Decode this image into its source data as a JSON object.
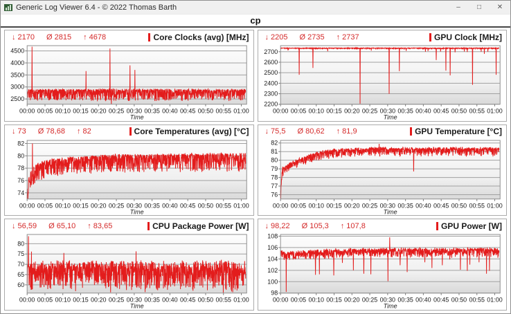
{
  "window": {
    "title": "Generic Log Viewer 6.4 - © 2022 Thomas Barth",
    "controls": {
      "minimize": "–",
      "maximize": "□",
      "close": "✕"
    }
  },
  "header": {
    "tab_label": "cp"
  },
  "colors": {
    "series": "#e31c1c",
    "stats_red": "#d42a2a",
    "grid": "#a0a0a0",
    "plot_border": "#8f8f8f",
    "tick": "#777777",
    "label": "#1a1a1a"
  },
  "chart_data": [
    {
      "type": "line",
      "title": "Core Clocks (avg) [MHz]",
      "stats": {
        "min": 2170,
        "avg": 2815,
        "max": 4678,
        "min_label": "↓ 2170",
        "avg_label": "Ø 2815",
        "max_label": "↑ 4678"
      },
      "xlabel": "Time",
      "x_ticks": [
        "00:00",
        "00:05",
        "00:10",
        "00:15",
        "00:20",
        "00:25",
        "00:30",
        "00:35",
        "00:40",
        "00:45",
        "00:50",
        "00:55",
        "01:00"
      ],
      "x_range": [
        0,
        61.5
      ],
      "ylim": [
        2280,
        4720
      ],
      "y_ticks": [
        2500,
        3000,
        3500,
        4000,
        4500
      ],
      "baseline": [
        [
          0,
          2880
        ],
        [
          61.5,
          2880
        ]
      ],
      "noise_up": 40,
      "noise_down": 480,
      "spikes": [
        [
          1.4,
          4678
        ],
        [
          16.5,
          3660
        ],
        [
          23.2,
          4600
        ],
        [
          23.6,
          2170
        ],
        [
          28.8,
          3900
        ],
        [
          30.2,
          3710
        ]
      ],
      "seed": 11
    },
    {
      "type": "line",
      "title": "GPU Clock [MHz]",
      "stats": {
        "min": 2205,
        "avg": 2735,
        "max": 2737,
        "min_label": "↓ 2205",
        "avg_label": "Ø 2735",
        "max_label": "↑ 2737"
      },
      "xlabel": "Time",
      "x_ticks": [
        "00:00",
        "00:05",
        "00:10",
        "00:15",
        "00:20",
        "00:25",
        "00:30",
        "00:35",
        "00:40",
        "00:45",
        "00:50",
        "00:55",
        "01:00"
      ],
      "x_range": [
        0,
        61.5
      ],
      "ylim": [
        2200,
        2758
      ],
      "y_ticks": [
        2200,
        2300,
        2400,
        2500,
        2600,
        2700
      ],
      "baseline": [
        [
          0,
          2735
        ],
        [
          61.5,
          2735
        ]
      ],
      "noise_up": 2,
      "noise_down": 8,
      "spikes": [
        [
          2.1,
          2712
        ],
        [
          5.2,
          2480
        ],
        [
          9.1,
          2545
        ],
        [
          13.2,
          2705
        ],
        [
          22.3,
          2205
        ],
        [
          25.4,
          2710
        ],
        [
          30.4,
          2300
        ],
        [
          33.3,
          2515
        ],
        [
          35.2,
          2708
        ],
        [
          40.6,
          2700
        ],
        [
          41.3,
          2706
        ],
        [
          43.6,
          2620
        ],
        [
          44.8,
          2702
        ],
        [
          46.3,
          2520
        ],
        [
          47.5,
          2475
        ],
        [
          48.9,
          2695
        ],
        [
          51.5,
          2702
        ],
        [
          52.3,
          2697
        ],
        [
          53.8,
          2385
        ],
        [
          56.2,
          2700
        ],
        [
          57.1,
          2680
        ],
        [
          58.1,
          2701
        ],
        [
          60.4,
          2480
        ]
      ],
      "seed": 22
    },
    {
      "type": "line",
      "title": "Core Temperatures (avg) [°C]",
      "stats": {
        "min": 73,
        "avg": 78.68,
        "max": 82,
        "min_label": "↓ 73",
        "avg_label": "Ø 78,68",
        "max_label": "↑ 82"
      },
      "xlabel": "Time",
      "x_ticks": [
        "00:00",
        "00:05",
        "00:10",
        "00:15",
        "00:20",
        "00:25",
        "00:30",
        "00:35",
        "00:40",
        "00:45",
        "00:50",
        "00:55",
        "01:00"
      ],
      "x_range": [
        0,
        61.5
      ],
      "ylim": [
        73,
        82.5
      ],
      "y_ticks": [
        74,
        76,
        78,
        80,
        82
      ],
      "baseline": [
        [
          0,
          74.2
        ],
        [
          0.4,
          76.2
        ],
        [
          1.2,
          77.6
        ],
        [
          3,
          78.6
        ],
        [
          6,
          79.2
        ],
        [
          12,
          79.6
        ],
        [
          25,
          80.0
        ],
        [
          45,
          80.1
        ],
        [
          61.5,
          80.2
        ]
      ],
      "noise_up": 0.3,
      "noise_down": 2.8,
      "spikes": [
        [
          0.1,
          73
        ],
        [
          1.5,
          82
        ]
      ],
      "seed": 33
    },
    {
      "type": "line",
      "title": "GPU Temperature [°C]",
      "stats": {
        "min": 75.5,
        "avg": 80.62,
        "max": 81.9,
        "min_label": "↓ 75,5",
        "avg_label": "Ø 80,62",
        "max_label": "↑ 81,9"
      },
      "xlabel": "Time",
      "x_ticks": [
        "00:00",
        "00:05",
        "00:10",
        "00:15",
        "00:20",
        "00:25",
        "00:30",
        "00:35",
        "00:40",
        "00:45",
        "00:50",
        "00:55",
        "01:00"
      ],
      "x_range": [
        0,
        61.5
      ],
      "ylim": [
        75.5,
        82.3
      ],
      "y_ticks": [
        76,
        77,
        78,
        79,
        80,
        81,
        82
      ],
      "baseline": [
        [
          0,
          76.3
        ],
        [
          0.5,
          79.0
        ],
        [
          1.5,
          79.2
        ],
        [
          3,
          79.6
        ],
        [
          6,
          80.2
        ],
        [
          10,
          80.8
        ],
        [
          15,
          81.1
        ],
        [
          25,
          81.3
        ],
        [
          61.5,
          81.3
        ]
      ],
      "noise_up": 0.25,
      "noise_down": 0.9,
      "spikes": [
        [
          0.05,
          75.5
        ],
        [
          27.6,
          81.9
        ],
        [
          37.3,
          78.7
        ]
      ],
      "seed": 44
    },
    {
      "type": "line",
      "title": "CPU Package Power [W]",
      "stats": {
        "min": 56.59,
        "avg": 65.1,
        "max": 83.65,
        "min_label": "↓ 56,59",
        "avg_label": "Ø 65,10",
        "max_label": "↑ 83,65"
      },
      "xlabel": "Time",
      "x_ticks": [
        "00:00",
        "00:05",
        "00:10",
        "00:15",
        "00:20",
        "00:25",
        "00:30",
        "00:35",
        "00:40",
        "00:45",
        "00:50",
        "00:55",
        "01:00"
      ],
      "x_range": [
        0,
        61.5
      ],
      "ylim": [
        56,
        84.5
      ],
      "y_ticks": [
        60,
        65,
        70,
        75,
        80
      ],
      "baseline": [
        [
          0,
          68
        ],
        [
          61.5,
          68
        ]
      ],
      "noise_up": 4,
      "noise_down": 12,
      "spikes": [
        [
          0.4,
          83.65
        ],
        [
          1.2,
          76.2
        ],
        [
          10.3,
          75.5
        ],
        [
          30.5,
          76.3
        ]
      ],
      "seed": 55
    },
    {
      "type": "line",
      "title": "GPU Power [W]",
      "stats": {
        "min": 98.22,
        "avg": 105.3,
        "max": 107.8,
        "min_label": "↓ 98,22",
        "avg_label": "Ø 105,3",
        "max_label": "↑ 107,8"
      },
      "xlabel": "Time",
      "x_ticks": [
        "00:00",
        "00:05",
        "00:10",
        "00:15",
        "00:20",
        "00:25",
        "00:30",
        "00:35",
        "00:40",
        "00:45",
        "00:50",
        "00:55",
        "01:00"
      ],
      "x_range": [
        0,
        61.5
      ],
      "ylim": [
        98,
        108.3
      ],
      "y_ticks": [
        98,
        100,
        102,
        104,
        106,
        108
      ],
      "baseline": [
        [
          0,
          105.4
        ],
        [
          1.2,
          104.9
        ],
        [
          4,
          105.0
        ],
        [
          10,
          105.3
        ],
        [
          20,
          105.5
        ],
        [
          61.5,
          105.6
        ]
      ],
      "noise_up": 0.45,
      "noise_down": 1.4,
      "spikes": [
        [
          1.6,
          98.22
        ],
        [
          9.8,
          101.2
        ],
        [
          10.9,
          101.3
        ],
        [
          14.9,
          101.1
        ],
        [
          17.3,
          103.3
        ],
        [
          20.4,
          102.0
        ],
        [
          23.3,
          101.4
        ],
        [
          25.3,
          101.3
        ],
        [
          30.1,
          100.1
        ],
        [
          30.6,
          107.8
        ],
        [
          33.5,
          102.9
        ],
        [
          35.5,
          101.7
        ],
        [
          40.4,
          103.4
        ],
        [
          42.4,
          102.4
        ],
        [
          45.3,
          102.9
        ],
        [
          47.4,
          103.9
        ],
        [
          50.4,
          102.1
        ],
        [
          52.3,
          101.9
        ],
        [
          53.0,
          103.0
        ],
        [
          55.6,
          103.4
        ],
        [
          57.7,
          101.4
        ],
        [
          58.5,
          101.9
        ],
        [
          60.9,
          104.2
        ]
      ],
      "seed": 66
    }
  ]
}
